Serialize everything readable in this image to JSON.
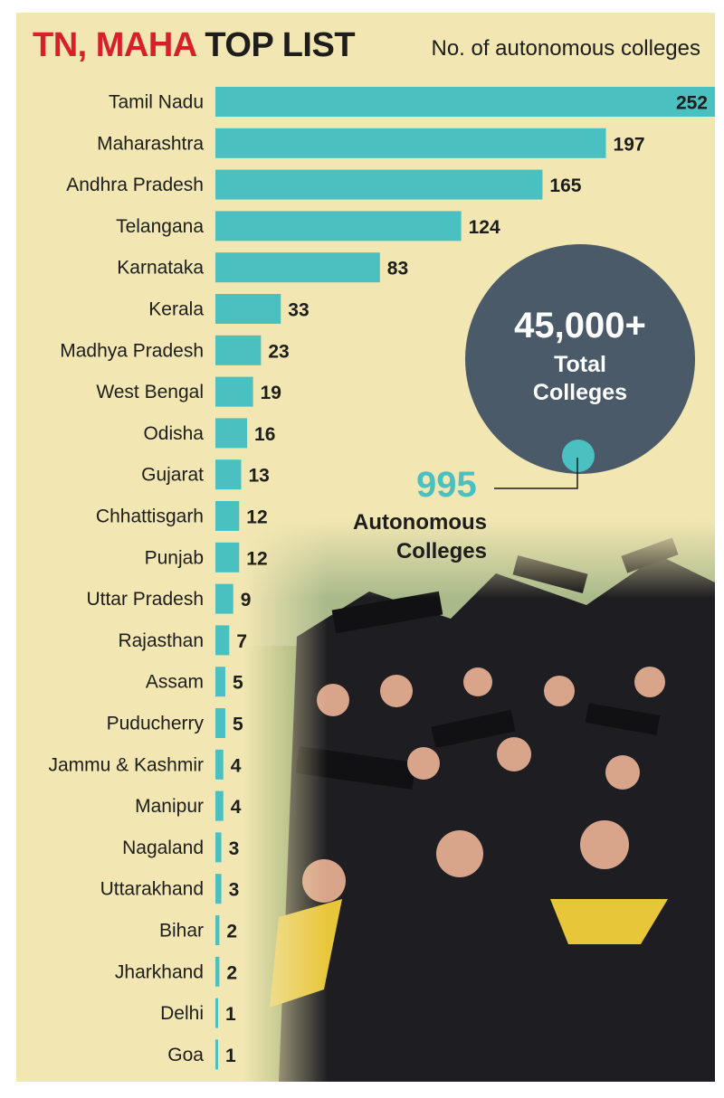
{
  "title": {
    "part1": "TN, MAHA",
    "part2": " TOP LIST"
  },
  "subtitle": "No. of autonomous colleges",
  "highlight": {
    "total_value": "45,000+",
    "total_label": "Total Colleges",
    "autonomous_value": "995",
    "autonomous_label": "Autonomous Colleges"
  },
  "colors": {
    "bar": "#4ac0c0",
    "panel": "#f2e7b3",
    "title_accent": "#d8202a",
    "circle": "#4a5a68"
  },
  "chart_data": {
    "type": "bar",
    "orientation": "horizontal",
    "title": "TN, MAHA TOP LIST",
    "subtitle": "No. of autonomous colleges",
    "categories": [
      "Tamil Nadu",
      "Maharashtra",
      "Andhra Pradesh",
      "Telangana",
      "Karnataka",
      "Kerala",
      "Madhya Pradesh",
      "West Bengal",
      "Odisha",
      "Gujarat",
      "Chhattisgarh",
      "Punjab",
      "Uttar Pradesh",
      "Rajasthan",
      "Assam",
      "Puducherry",
      "Jammu & Kashmir",
      "Manipur",
      "Nagaland",
      "Uttarakhand",
      "Bihar",
      "Jharkhand",
      "Delhi",
      "Goa"
    ],
    "values": [
      252,
      197,
      165,
      124,
      83,
      33,
      23,
      19,
      16,
      13,
      12,
      12,
      9,
      7,
      5,
      5,
      4,
      4,
      3,
      3,
      2,
      2,
      1,
      1
    ],
    "grid": false,
    "legend": "none"
  }
}
